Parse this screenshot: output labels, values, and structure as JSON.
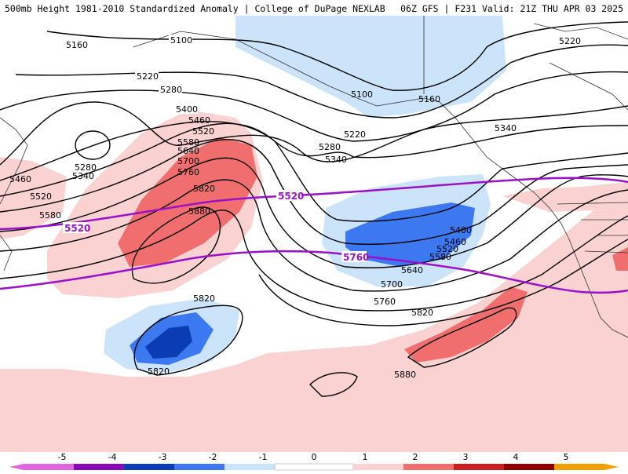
{
  "header": {
    "left": "500mb Height 1981-2010 Standardized Anomaly | College of DuPage NEXLAB",
    "right": "06Z GFS | F231 Valid: 21Z THU APR 03 2025"
  },
  "contour_labels": [
    "5100",
    "5160",
    "5220",
    "5280",
    "5340",
    "5400",
    "5460",
    "5520",
    "5580",
    "5640",
    "5700",
    "5760",
    "5820",
    "5880"
  ],
  "highlight_contours": [
    "5520",
    "5760"
  ],
  "colors": {
    "anom_neg5": "#e066e0",
    "anom_neg4": "#8c0ab4",
    "anom_neg3": "#0a3cb4",
    "anom_neg2": "#3c78f0",
    "anom_neg1": "#cce4fa",
    "anom_pos1": "#fad2d2",
    "anom_pos2": "#f06e6e",
    "anom_pos3": "#c81e1e",
    "anom_pos4": "#8c0000",
    "anom_pos5": "#f0a000",
    "highlight_line": "#9b10c8",
    "contour_line": "#000000"
  },
  "colorbar": {
    "ticks": [
      "-5",
      "-4",
      "-3",
      "-2",
      "-1",
      "0",
      "1",
      "2",
      "3",
      "4",
      "5"
    ]
  }
}
